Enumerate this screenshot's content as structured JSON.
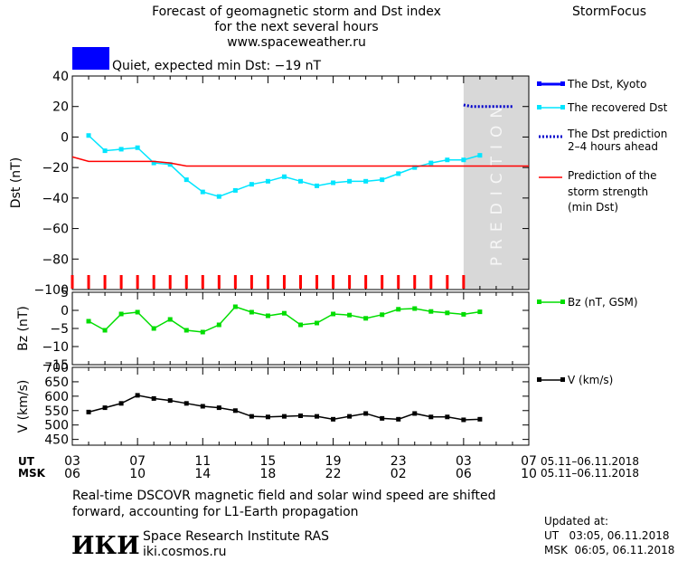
{
  "header": {
    "title_line1": "Forecast of geomagnetic storm and Dst index",
    "title_line2": "for the next several hours",
    "title_line3": "www.spaceweather.ru",
    "brand": "StormFocus"
  },
  "status": {
    "text": "Quiet, expected min Dst: −19 nT",
    "color": "#0000ff"
  },
  "prediction_label": "PREDICTION",
  "legend": {
    "dst_kyoto": "The Dst, Kyoto",
    "recovered_dst": "The recovered Dst",
    "dst_prediction_line1": "The Dst prediction",
    "dst_prediction_line2": "2–4 hours ahead",
    "storm_line1": "Prediction of the",
    "storm_line2": "storm strength",
    "storm_line3": "(min Dst)",
    "bz": "Bz (nT, GSM)",
    "v": "V (km/s)"
  },
  "time_axis": {
    "ut_label": "UT",
    "msk_label": "MSK",
    "ut_ticks": [
      "03",
      "07",
      "11",
      "15",
      "19",
      "23",
      "03",
      "07"
    ],
    "msk_ticks": [
      "06",
      "10",
      "14",
      "18",
      "22",
      "02",
      "06",
      "10"
    ],
    "date_range_ut": "05.11–06.11.2018",
    "date_range_msk": "05.11–06.11.2018"
  },
  "footer": {
    "note_line1": "Real-time DSCOVR magnetic field and solar wind speed are shifted",
    "note_line2": "forward, accounting for L1-Earth propagation",
    "logo": "ИКИ",
    "institute": "Space Research Institute RAS",
    "site": "iki.cosmos.ru",
    "updated_label": "Updated at:",
    "updated_ut": "UT   03:05, 06.11.2018",
    "updated_msk": "MSK  06:05, 06.11.2018"
  },
  "colors": {
    "recovered": "#00e5ff",
    "kyoto": "#0000ff",
    "prediction": "#0000cc",
    "storm": "#ff0000",
    "bz": "#00dd00",
    "v": "#000000",
    "prediction_zone": "#d8d8d8"
  },
  "chart_data": [
    {
      "type": "line",
      "ylabel": "Dst (nT)",
      "xlim": [
        3,
        31
      ],
      "ylim": [
        -100,
        40
      ],
      "yticks": [
        40,
        20,
        0,
        -20,
        -40,
        -60,
        -80,
        -100
      ],
      "prediction_zone": [
        27,
        31
      ],
      "series": [
        {
          "name": "The recovered Dst",
          "x": [
            4,
            5,
            6,
            7,
            8,
            9,
            10,
            11,
            12,
            13,
            14,
            15,
            16,
            17,
            18,
            19,
            20,
            21,
            22,
            23,
            24,
            25,
            26,
            27,
            28
          ],
          "y": [
            1,
            -9,
            -8,
            -7,
            -17,
            -18,
            -28,
            -36,
            -39,
            -35,
            -31,
            -29,
            -26,
            -29,
            -32,
            -30,
            -29,
            -29,
            -28,
            -24,
            -20,
            -17,
            -15,
            -15,
            -12
          ]
        },
        {
          "name": "Prediction of the storm strength (min Dst)",
          "x": [
            3,
            4,
            8,
            9,
            10,
            11,
            31
          ],
          "y": [
            -13,
            -16,
            -16,
            -17,
            -19,
            -19,
            -19
          ]
        },
        {
          "name": "The Dst prediction 2-4 hours ahead",
          "x": [
            27,
            27.5,
            28,
            29,
            30
          ],
          "y": [
            21,
            20,
            20,
            20,
            20
          ]
        }
      ],
      "markers": {
        "x": [
          3,
          4,
          5,
          6,
          7,
          8,
          9,
          10,
          11,
          12,
          13,
          14,
          15,
          16,
          17,
          18,
          19,
          20,
          21,
          22,
          23,
          24,
          25,
          26,
          27
        ]
      }
    },
    {
      "type": "line",
      "ylabel": "Bz (nT)",
      "xlim": [
        3,
        31
      ],
      "ylim": [
        -15,
        5
      ],
      "yticks": [
        5,
        0,
        -5,
        -10,
        -15
      ],
      "series": [
        {
          "name": "Bz (nT, GSM)",
          "x": [
            4,
            5,
            6,
            7,
            8,
            9,
            10,
            11,
            12,
            13,
            14,
            15,
            16,
            17,
            18,
            19,
            20,
            21,
            22,
            23,
            24,
            25,
            26,
            27,
            28
          ],
          "y": [
            -3,
            -5.5,
            -1,
            -0.5,
            -5,
            -2.5,
            -5.5,
            -6,
            -4,
            1,
            -0.5,
            -1.5,
            -0.8,
            -4,
            -3.5,
            -1,
            -1.3,
            -2.2,
            -1.2,
            0.3,
            0.5,
            -0.3,
            -0.7,
            -1.1,
            -0.4
          ]
        }
      ]
    },
    {
      "type": "line",
      "ylabel": "V (km/s)",
      "xlim": [
        3,
        31
      ],
      "ylim": [
        430,
        700
      ],
      "yticks": [
        700,
        650,
        600,
        550,
        500,
        450
      ],
      "series": [
        {
          "name": "V (km/s)",
          "x": [
            4,
            5,
            6,
            7,
            8,
            9,
            10,
            11,
            12,
            13,
            14,
            15,
            16,
            17,
            18,
            19,
            20,
            21,
            22,
            23,
            24,
            25,
            26,
            27,
            28
          ],
          "y": [
            545,
            560,
            575,
            603,
            592,
            585,
            575,
            565,
            560,
            550,
            530,
            528,
            530,
            532,
            530,
            520,
            530,
            540,
            523,
            520,
            540,
            528,
            528,
            518,
            520
          ]
        }
      ]
    }
  ]
}
